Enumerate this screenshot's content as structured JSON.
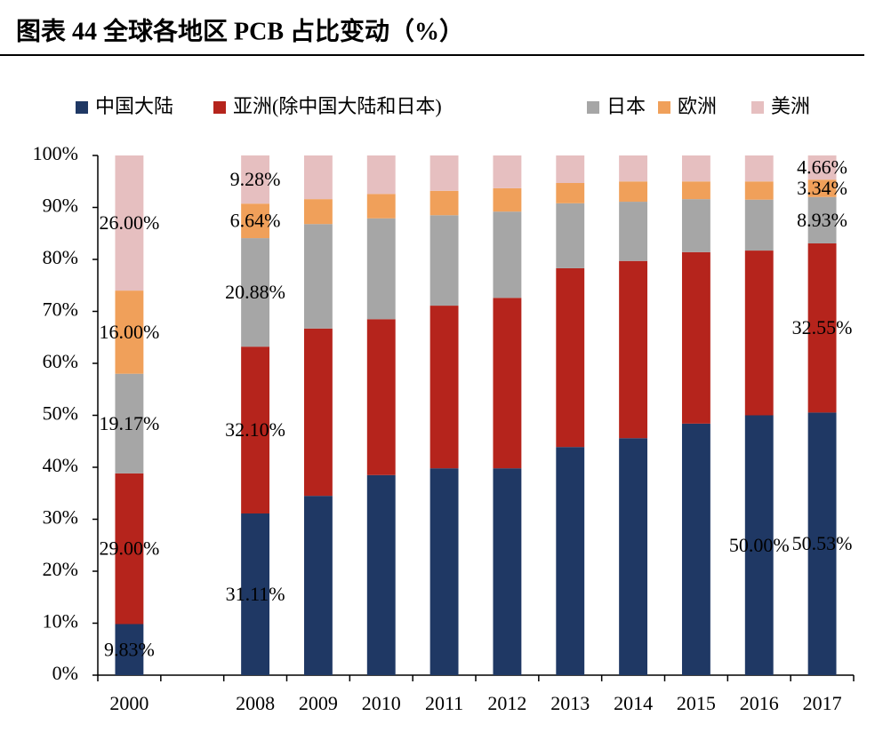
{
  "chart_data": {
    "type": "stacked-bar",
    "title": "图表 44    全球各地区 PCB 占比变动（%）",
    "categories": [
      "2000",
      null,
      "2008",
      "2009",
      "2010",
      "2011",
      "2012",
      "2013",
      "2014",
      "2015",
      "2016",
      "2017"
    ],
    "series": [
      {
        "name": "中国大陆",
        "color": "#1f3864",
        "values": [
          9.83,
          null,
          31.11,
          34.5,
          38.5,
          39.8,
          39.8,
          43.9,
          45.6,
          48.4,
          50.0,
          50.53
        ],
        "value_labels": [
          "9.83%",
          null,
          "31.11%",
          null,
          null,
          null,
          null,
          null,
          null,
          null,
          "50.00%",
          "50.53%"
        ]
      },
      {
        "name": "亚洲(除中国大陆和日本)",
        "color": "#b5241c",
        "values": [
          29.0,
          null,
          32.1,
          32.2,
          30.0,
          31.3,
          32.8,
          34.4,
          34.1,
          33.0,
          31.7,
          32.55
        ],
        "value_labels": [
          "29.00%",
          null,
          "32.10%",
          null,
          null,
          null,
          null,
          null,
          null,
          null,
          null,
          "32.55%"
        ]
      },
      {
        "name": "日本",
        "color": "#a6a6a6",
        "values": [
          19.17,
          null,
          20.88,
          20.1,
          19.4,
          17.4,
          16.6,
          12.5,
          11.4,
          10.2,
          9.8,
          8.93
        ],
        "value_labels": [
          "19.17%",
          null,
          "20.88%",
          null,
          null,
          null,
          null,
          null,
          null,
          null,
          null,
          "8.93%"
        ]
      },
      {
        "name": "欧洲",
        "color": "#f0a05a",
        "values": [
          16.0,
          null,
          6.64,
          4.8,
          4.7,
          4.7,
          4.5,
          3.9,
          3.9,
          3.4,
          3.5,
          3.34
        ],
        "value_labels": [
          "16.00%",
          null,
          "6.64%",
          null,
          null,
          null,
          null,
          null,
          null,
          null,
          null,
          "3.34%"
        ]
      },
      {
        "name": "美洲",
        "color": "#e6bfc0",
        "values": [
          26.0,
          null,
          9.28,
          8.4,
          7.4,
          6.8,
          6.3,
          5.3,
          5.0,
          5.0,
          5.0,
          4.66
        ],
        "value_labels": [
          "26.00%",
          null,
          "9.28%",
          null,
          null,
          null,
          null,
          null,
          null,
          null,
          null,
          "4.66%"
        ]
      }
    ],
    "ylim": [
      0,
      100
    ],
    "yticks": [
      {
        "value": 0,
        "label": "0%"
      },
      {
        "value": 10,
        "label": "10%"
      },
      {
        "value": 20,
        "label": "20%"
      },
      {
        "value": 30,
        "label": "30%"
      },
      {
        "value": 40,
        "label": "40%"
      },
      {
        "value": 50,
        "label": "50%"
      },
      {
        "value": 60,
        "label": "60%"
      },
      {
        "value": 70,
        "label": "70%"
      },
      {
        "value": 80,
        "label": "80%"
      },
      {
        "value": 90,
        "label": "90%"
      },
      {
        "value": 100,
        "label": "100%"
      }
    ],
    "legend": "top",
    "grid": false
  }
}
